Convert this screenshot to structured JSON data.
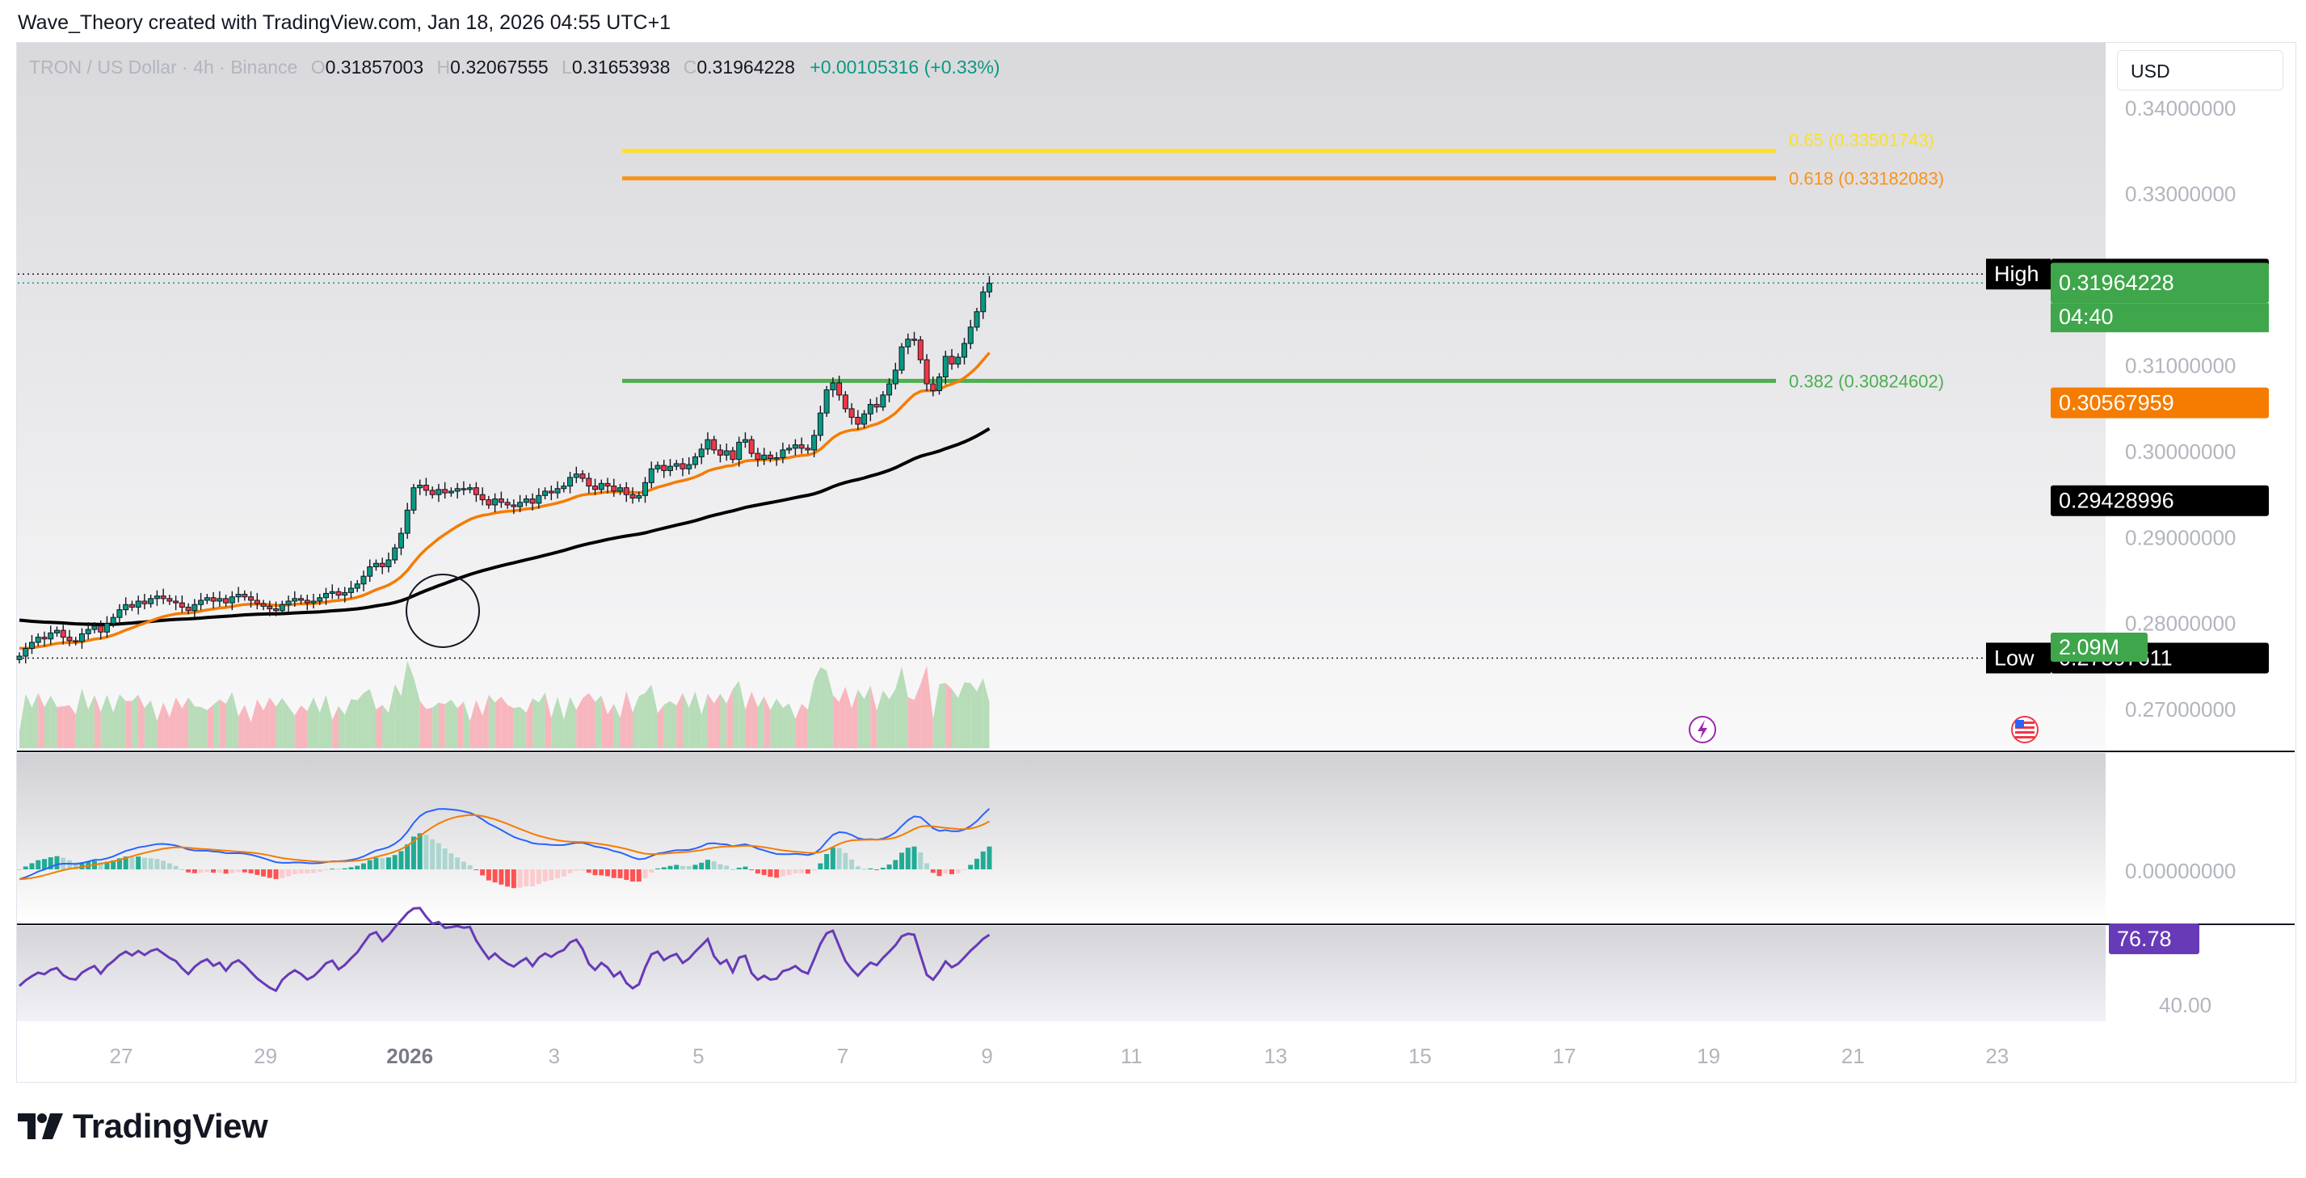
{
  "header": {
    "credit": "Wave_Theory created with TradingView.com, Jan 18, 2026 04:55 UTC+1"
  },
  "legend": {
    "symbol": "TRON / US Dollar · 4h · Binance",
    "open_label": "O",
    "open": "0.31857003",
    "high_label": "H",
    "high": "0.32067555",
    "low_label": "L",
    "low": "0.31653938",
    "close_label": "C",
    "close": "0.31964228",
    "change": "+0.00105316 (+0.33%)"
  },
  "currency": "USD",
  "footer": {
    "brand": "TradingView"
  },
  "colors": {
    "up": "#089981",
    "down": "#f23645",
    "ema_fast": "#f57c00",
    "ema_slow": "#000000",
    "fib_065": "#fbe02a",
    "fib_0618": "#f7931a",
    "fib_0382": "#4caf50",
    "macd": "#2962ff",
    "signal": "#f57c00",
    "rsi": "#673ab7"
  },
  "chart_data": [
    {
      "type": "candlestick",
      "title": "TRON / US Dollar · 4h · Binance",
      "ylim": [
        0.2652,
        0.3476
      ],
      "y_ticks": [
        "0.34000000",
        "0.33000000",
        "0.31000000",
        "0.30000000",
        "0.29000000",
        "0.28000000",
        "0.27000000"
      ],
      "x_ticks": [
        "27",
        "29",
        "2026",
        "3",
        "5",
        "7",
        "9",
        "11",
        "13",
        "15",
        "17",
        "19",
        "21",
        "23"
      ],
      "closes": [
        0.2762,
        0.2771,
        0.2778,
        0.2784,
        0.2782,
        0.2789,
        0.2792,
        0.2784,
        0.278,
        0.2779,
        0.2788,
        0.2793,
        0.2797,
        0.279,
        0.28,
        0.2807,
        0.2816,
        0.2822,
        0.2819,
        0.2826,
        0.2823,
        0.2829,
        0.2832,
        0.2829,
        0.2826,
        0.2824,
        0.2819,
        0.2815,
        0.2822,
        0.2827,
        0.283,
        0.2826,
        0.2829,
        0.2824,
        0.2831,
        0.2834,
        0.2831,
        0.2827,
        0.2823,
        0.282,
        0.2817,
        0.2815,
        0.2822,
        0.2826,
        0.2829,
        0.2827,
        0.2824,
        0.2826,
        0.283,
        0.2835,
        0.2837,
        0.2833,
        0.2836,
        0.2841,
        0.2846,
        0.2855,
        0.2866,
        0.287,
        0.2866,
        0.2874,
        0.2888,
        0.2905,
        0.2932,
        0.2958,
        0.2961,
        0.2955,
        0.295,
        0.2956,
        0.2952,
        0.2954,
        0.2957,
        0.2956,
        0.2958,
        0.295,
        0.2944,
        0.2938,
        0.2945,
        0.2941,
        0.2938,
        0.2936,
        0.2941,
        0.2945,
        0.294,
        0.2949,
        0.2954,
        0.2952,
        0.2957,
        0.296,
        0.297,
        0.2974,
        0.2969,
        0.296,
        0.2956,
        0.2963,
        0.296,
        0.2954,
        0.2958,
        0.295,
        0.2946,
        0.2949,
        0.2964,
        0.298,
        0.2984,
        0.2978,
        0.2983,
        0.2986,
        0.298,
        0.2985,
        0.2994,
        0.3003,
        0.3014,
        0.3002,
        0.2996,
        0.3001,
        0.2991,
        0.3011,
        0.3014,
        0.2998,
        0.2991,
        0.2996,
        0.2992,
        0.2993,
        0.3002,
        0.3004,
        0.3008,
        0.3004,
        0.3002,
        0.3019,
        0.3045,
        0.3072,
        0.308,
        0.3066,
        0.305,
        0.304,
        0.3032,
        0.3044,
        0.3055,
        0.3052,
        0.3066,
        0.3079,
        0.3095,
        0.3122,
        0.3131,
        0.313,
        0.3107,
        0.3079,
        0.3071,
        0.3087,
        0.3111,
        0.3102,
        0.311,
        0.3126,
        0.3145,
        0.3163,
        0.3186,
        0.3196
      ],
      "ema_fast_last": "0.30567959",
      "ema_slow_last": "0.29428996",
      "high_label": "High",
      "high": "0.32067555",
      "low_label": "Low",
      "low": "0.27597611",
      "last_price": "0.31964228",
      "countdown": "04:40",
      "fib_levels": [
        {
          "label": "0.65 (0.33501743)",
          "value": 0.33501743
        },
        {
          "label": "0.618 (0.33182083)",
          "value": 0.33182083
        },
        {
          "label": "0.382 (0.30824602)",
          "value": 0.30824602
        }
      ],
      "volume_label": "2.09M"
    },
    {
      "type": "area",
      "title": "MACD",
      "y_ticks": [
        "0.00000000"
      ]
    },
    {
      "type": "line",
      "title": "RSI",
      "y_ticks": [
        "40.00"
      ],
      "last_value": "76.78"
    }
  ]
}
